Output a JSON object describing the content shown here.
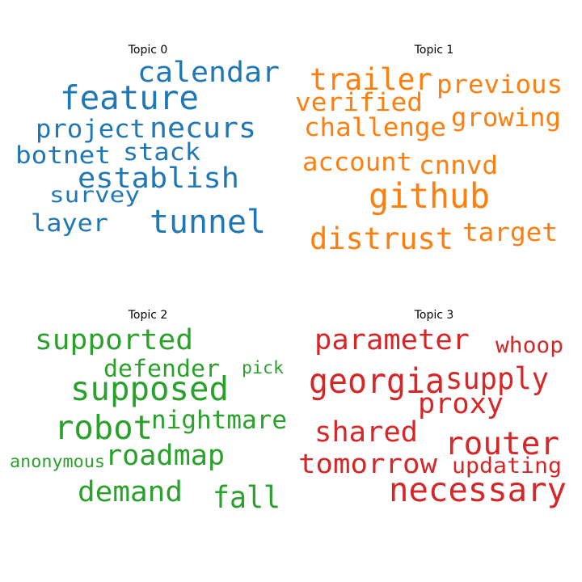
{
  "chart_data": [
    {
      "type": "wordcloud",
      "title": "Topic 0",
      "color": "#1f77b4",
      "words": [
        "calendar",
        "feature",
        "project",
        "necurs",
        "stack",
        "botnet",
        "establish",
        "survey",
        "layer",
        "tunnel"
      ]
    },
    {
      "type": "wordcloud",
      "title": "Topic 1",
      "color": "#ff7f0e",
      "words": [
        "trailer",
        "previous",
        "verified",
        "challenge",
        "growing",
        "account",
        "cnnvd",
        "github",
        "distrust",
        "target"
      ]
    },
    {
      "type": "wordcloud",
      "title": "Topic 2",
      "color": "#2ca02c",
      "words": [
        "supported",
        "defender",
        "pick",
        "supposed",
        "robot",
        "nightmare",
        "anonymous",
        "roadmap",
        "demand",
        "fall"
      ]
    },
    {
      "type": "wordcloud",
      "title": "Topic 3",
      "color": "#d62728",
      "words": [
        "parameter",
        "whoop",
        "georgia",
        "supply",
        "proxy",
        "shared",
        "router",
        "tomorrow",
        "updating",
        "necessary"
      ]
    }
  ]
}
